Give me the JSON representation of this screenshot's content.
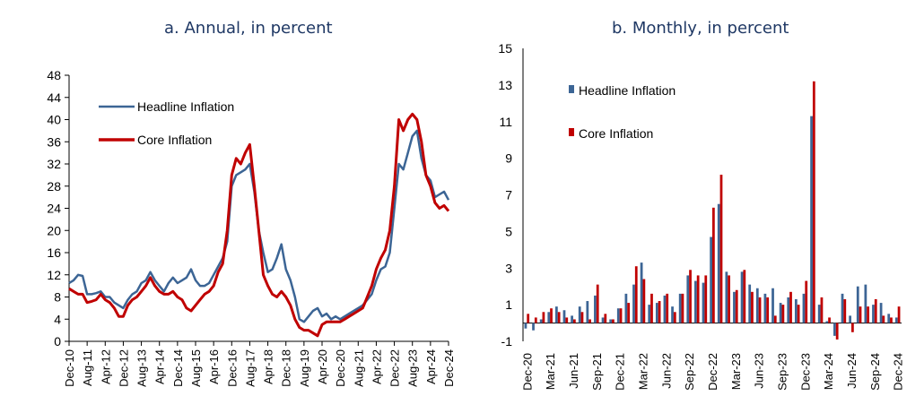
{
  "charts": [
    {
      "chart_data": {
        "type": "line",
        "title": "a. Annual, in percent",
        "ylim": [
          0,
          48
        ],
        "yticks": [
          0,
          4,
          8,
          12,
          16,
          20,
          24,
          28,
          32,
          36,
          40,
          44,
          48
        ],
        "xticklabels": [
          "Dec-10",
          "Aug-11",
          "Apr-12",
          "Dec-12",
          "Aug-13",
          "Apr-14",
          "Dec-14",
          "Aug-15",
          "Apr-16",
          "Dec-16",
          "Aug-17",
          "Apr-18",
          "Dec-18",
          "Aug-19",
          "Apr-20",
          "Dec-20",
          "Aug-21",
          "Apr-22",
          "Dec-22",
          "Aug-23",
          "Apr-24",
          "Dec-24"
        ],
        "legend_placement": "top-left",
        "series": [
          {
            "name": "Headline Inflation",
            "color": "#3c6595",
            "points": [
              [
                "2010-12",
                10.5
              ],
              [
                "2011-02",
                11.0
              ],
              [
                "2011-04",
                12.0
              ],
              [
                "2011-06",
                11.8
              ],
              [
                "2011-08",
                8.5
              ],
              [
                "2011-10",
                8.5
              ],
              [
                "2011-12",
                8.7
              ],
              [
                "2012-02",
                9.0
              ],
              [
                "2012-04",
                8.0
              ],
              [
                "2012-06",
                8.0
              ],
              [
                "2012-08",
                7.0
              ],
              [
                "2012-10",
                6.5
              ],
              [
                "2012-12",
                6.0
              ],
              [
                "2013-02",
                7.5
              ],
              [
                "2013-04",
                8.5
              ],
              [
                "2013-06",
                9.0
              ],
              [
                "2013-08",
                10.5
              ],
              [
                "2013-10",
                11.0
              ],
              [
                "2013-12",
                12.5
              ],
              [
                "2014-02",
                11.0
              ],
              [
                "2014-04",
                10.0
              ],
              [
                "2014-06",
                9.0
              ],
              [
                "2014-08",
                10.5
              ],
              [
                "2014-10",
                11.5
              ],
              [
                "2014-12",
                10.5
              ],
              [
                "2015-02",
                11.0
              ],
              [
                "2015-04",
                11.5
              ],
              [
                "2015-06",
                13.0
              ],
              [
                "2015-08",
                11.0
              ],
              [
                "2015-10",
                10.0
              ],
              [
                "2015-12",
                10.0
              ],
              [
                "2016-02",
                10.5
              ],
              [
                "2016-04",
                12.0
              ],
              [
                "2016-06",
                13.5
              ],
              [
                "2016-08",
                15.0
              ],
              [
                "2016-10",
                18.0
              ],
              [
                "2016-12",
                28.0
              ],
              [
                "2017-02",
                30.0
              ],
              [
                "2017-04",
                30.5
              ],
              [
                "2017-06",
                31.0
              ],
              [
                "2017-08",
                32.0
              ],
              [
                "2017-10",
                27.0
              ],
              [
                "2017-12",
                20.0
              ],
              [
                "2018-02",
                16.0
              ],
              [
                "2018-04",
                12.5
              ],
              [
                "2018-06",
                13.0
              ],
              [
                "2018-08",
                15.0
              ],
              [
                "2018-10",
                17.5
              ],
              [
                "2018-12",
                13.0
              ],
              [
                "2019-02",
                11.0
              ],
              [
                "2019-04",
                8.0
              ],
              [
                "2019-06",
                4.0
              ],
              [
                "2019-08",
                3.5
              ],
              [
                "2019-10",
                4.5
              ],
              [
                "2019-12",
                5.5
              ],
              [
                "2020-02",
                6.0
              ],
              [
                "2020-04",
                4.5
              ],
              [
                "2020-06",
                5.0
              ],
              [
                "2020-08",
                4.0
              ],
              [
                "2020-10",
                4.5
              ],
              [
                "2020-12",
                4.0
              ],
              [
                "2021-02",
                4.5
              ],
              [
                "2021-04",
                5.0
              ],
              [
                "2021-06",
                5.5
              ],
              [
                "2021-08",
                6.0
              ],
              [
                "2021-10",
                6.5
              ],
              [
                "2021-12",
                7.5
              ],
              [
                "2022-02",
                8.5
              ],
              [
                "2022-04",
                11.0
              ],
              [
                "2022-06",
                13.0
              ],
              [
                "2022-08",
                13.5
              ],
              [
                "2022-10",
                16.0
              ],
              [
                "2022-12",
                24.0
              ],
              [
                "2023-02",
                32.0
              ],
              [
                "2023-04",
                31.0
              ],
              [
                "2023-06",
                34.0
              ],
              [
                "2023-08",
                37.0
              ],
              [
                "2023-10",
                38.0
              ],
              [
                "2023-12",
                33.0
              ],
              [
                "2024-02",
                30.0
              ],
              [
                "2024-04",
                29.0
              ],
              [
                "2024-06",
                26.0
              ],
              [
                "2024-08",
                26.5
              ],
              [
                "2024-10",
                27.0
              ],
              [
                "2024-12",
                25.5
              ]
            ]
          },
          {
            "name": "Core Inflation",
            "color": "#c00000",
            "points": [
              [
                "2010-12",
                9.5
              ],
              [
                "2011-02",
                9.0
              ],
              [
                "2011-04",
                8.5
              ],
              [
                "2011-06",
                8.5
              ],
              [
                "2011-08",
                7.0
              ],
              [
                "2011-10",
                7.2
              ],
              [
                "2011-12",
                7.5
              ],
              [
                "2012-02",
                8.5
              ],
              [
                "2012-04",
                7.5
              ],
              [
                "2012-06",
                7.0
              ],
              [
                "2012-08",
                6.0
              ],
              [
                "2012-10",
                4.5
              ],
              [
                "2012-12",
                4.5
              ],
              [
                "2013-02",
                6.5
              ],
              [
                "2013-04",
                7.5
              ],
              [
                "2013-06",
                8.0
              ],
              [
                "2013-08",
                9.0
              ],
              [
                "2013-10",
                10.0
              ],
              [
                "2013-12",
                11.5
              ],
              [
                "2014-02",
                10.0
              ],
              [
                "2014-04",
                9.0
              ],
              [
                "2014-06",
                8.5
              ],
              [
                "2014-08",
                8.5
              ],
              [
                "2014-10",
                9.0
              ],
              [
                "2014-12",
                8.0
              ],
              [
                "2015-02",
                7.5
              ],
              [
                "2015-04",
                6.0
              ],
              [
                "2015-06",
                5.5
              ],
              [
                "2015-08",
                6.5
              ],
              [
                "2015-10",
                7.5
              ],
              [
                "2015-12",
                8.5
              ],
              [
                "2016-02",
                9.0
              ],
              [
                "2016-04",
                10.0
              ],
              [
                "2016-06",
                12.5
              ],
              [
                "2016-08",
                14.0
              ],
              [
                "2016-10",
                20.0
              ],
              [
                "2016-12",
                30.0
              ],
              [
                "2017-02",
                33.0
              ],
              [
                "2017-04",
                32.0
              ],
              [
                "2017-06",
                34.0
              ],
              [
                "2017-08",
                35.5
              ],
              [
                "2017-10",
                28.0
              ],
              [
                "2017-12",
                20.0
              ],
              [
                "2018-02",
                12.0
              ],
              [
                "2018-04",
                10.0
              ],
              [
                "2018-06",
                8.5
              ],
              [
                "2018-08",
                8.0
              ],
              [
                "2018-10",
                9.0
              ],
              [
                "2018-12",
                8.0
              ],
              [
                "2019-02",
                6.5
              ],
              [
                "2019-04",
                4.0
              ],
              [
                "2019-06",
                2.5
              ],
              [
                "2019-08",
                2.0
              ],
              [
                "2019-10",
                2.0
              ],
              [
                "2019-12",
                1.5
              ],
              [
                "2020-02",
                1.0
              ],
              [
                "2020-04",
                3.0
              ],
              [
                "2020-06",
                3.5
              ],
              [
                "2020-08",
                3.5
              ],
              [
                "2020-10",
                3.5
              ],
              [
                "2020-12",
                3.5
              ],
              [
                "2021-02",
                4.0
              ],
              [
                "2021-04",
                4.5
              ],
              [
                "2021-06",
                5.0
              ],
              [
                "2021-08",
                5.5
              ],
              [
                "2021-10",
                6.0
              ],
              [
                "2021-12",
                8.0
              ],
              [
                "2022-02",
                10.0
              ],
              [
                "2022-04",
                13.0
              ],
              [
                "2022-06",
                15.0
              ],
              [
                "2022-08",
                16.5
              ],
              [
                "2022-10",
                20.0
              ],
              [
                "2022-12",
                28.0
              ],
              [
                "2023-02",
                40.0
              ],
              [
                "2023-04",
                38.0
              ],
              [
                "2023-06",
                40.0
              ],
              [
                "2023-08",
                41.0
              ],
              [
                "2023-10",
                40.0
              ],
              [
                "2023-12",
                36.0
              ],
              [
                "2024-02",
                30.0
              ],
              [
                "2024-04",
                28.0
              ],
              [
                "2024-06",
                25.0
              ],
              [
                "2024-08",
                24.0
              ],
              [
                "2024-10",
                24.5
              ],
              [
                "2024-12",
                23.5
              ]
            ]
          }
        ]
      }
    },
    {
      "chart_data": {
        "type": "bar",
        "title": "b. Monthly, in percent",
        "ylim": [
          -1,
          15
        ],
        "yticks": [
          -1,
          1,
          3,
          5,
          7,
          9,
          11,
          13,
          15
        ],
        "xticklabels": [
          "Dec-20",
          "Mar-21",
          "Jun-21",
          "Sep-21",
          "Dec-21",
          "Mar-22",
          "Jun-22",
          "Sep-22",
          "Dec-22",
          "Mar-23",
          "Jun-23",
          "Sep-23",
          "Dec-23",
          "Mar-24",
          "Jun-24",
          "Sep-24",
          "Dec-24"
        ],
        "legend_placement": "top-left",
        "categories": [
          "Dec-20",
          "Jan-21",
          "Feb-21",
          "Mar-21",
          "Apr-21",
          "May-21",
          "Jun-21",
          "Jul-21",
          "Aug-21",
          "Sep-21",
          "Oct-21",
          "Nov-21",
          "Dec-21",
          "Jan-22",
          "Feb-22",
          "Mar-22",
          "Apr-22",
          "May-22",
          "Jun-22",
          "Jul-22",
          "Aug-22",
          "Sep-22",
          "Oct-22",
          "Nov-22",
          "Dec-22",
          "Jan-23",
          "Feb-23",
          "Mar-23",
          "Apr-23",
          "May-23",
          "Jun-23",
          "Jul-23",
          "Aug-23",
          "Sep-23",
          "Oct-23",
          "Nov-23",
          "Dec-23",
          "Jan-24",
          "Feb-24",
          "Mar-24",
          "Apr-24",
          "May-24",
          "Jun-24",
          "Jul-24",
          "Aug-24",
          "Sep-24",
          "Oct-24",
          "Nov-24",
          "Dec-24"
        ],
        "series": [
          {
            "name": "Headline Inflation",
            "color": "#3c6595",
            "values": [
              -0.3,
              -0.4,
              0.2,
              0.6,
              0.9,
              0.7,
              0.4,
              0.9,
              1.2,
              1.5,
              0.3,
              0.2,
              0.8,
              1.6,
              2.1,
              3.3,
              1.0,
              1.1,
              1.5,
              0.9,
              1.6,
              2.6,
              2.3,
              2.2,
              4.7,
              6.5,
              2.8,
              1.7,
              2.8,
              2.1,
              1.9,
              1.6,
              1.9,
              1.1,
              1.4,
              1.3,
              1.6,
              11.3,
              1.0,
              0.1,
              -0.7,
              1.6,
              0.4,
              2.0,
              2.1,
              1.0,
              1.1,
              0.5,
              0.3
            ]
          },
          {
            "name": "Core Inflation",
            "color": "#c00000",
            "values": [
              0.5,
              0.3,
              0.6,
              0.8,
              0.6,
              0.3,
              0.2,
              0.6,
              0.2,
              2.1,
              0.5,
              0.2,
              0.8,
              1.1,
              3.1,
              2.4,
              1.6,
              1.2,
              1.6,
              0.6,
              1.6,
              2.9,
              2.6,
              2.6,
              6.3,
              8.1,
              2.6,
              1.8,
              2.9,
              1.7,
              1.4,
              1.4,
              0.4,
              1.0,
              1.7,
              1.0,
              2.3,
              13.2,
              1.4,
              0.3,
              -0.9,
              1.3,
              -0.5,
              0.9,
              0.9,
              1.3,
              0.4,
              0.3,
              0.9
            ]
          }
        ]
      }
    }
  ]
}
